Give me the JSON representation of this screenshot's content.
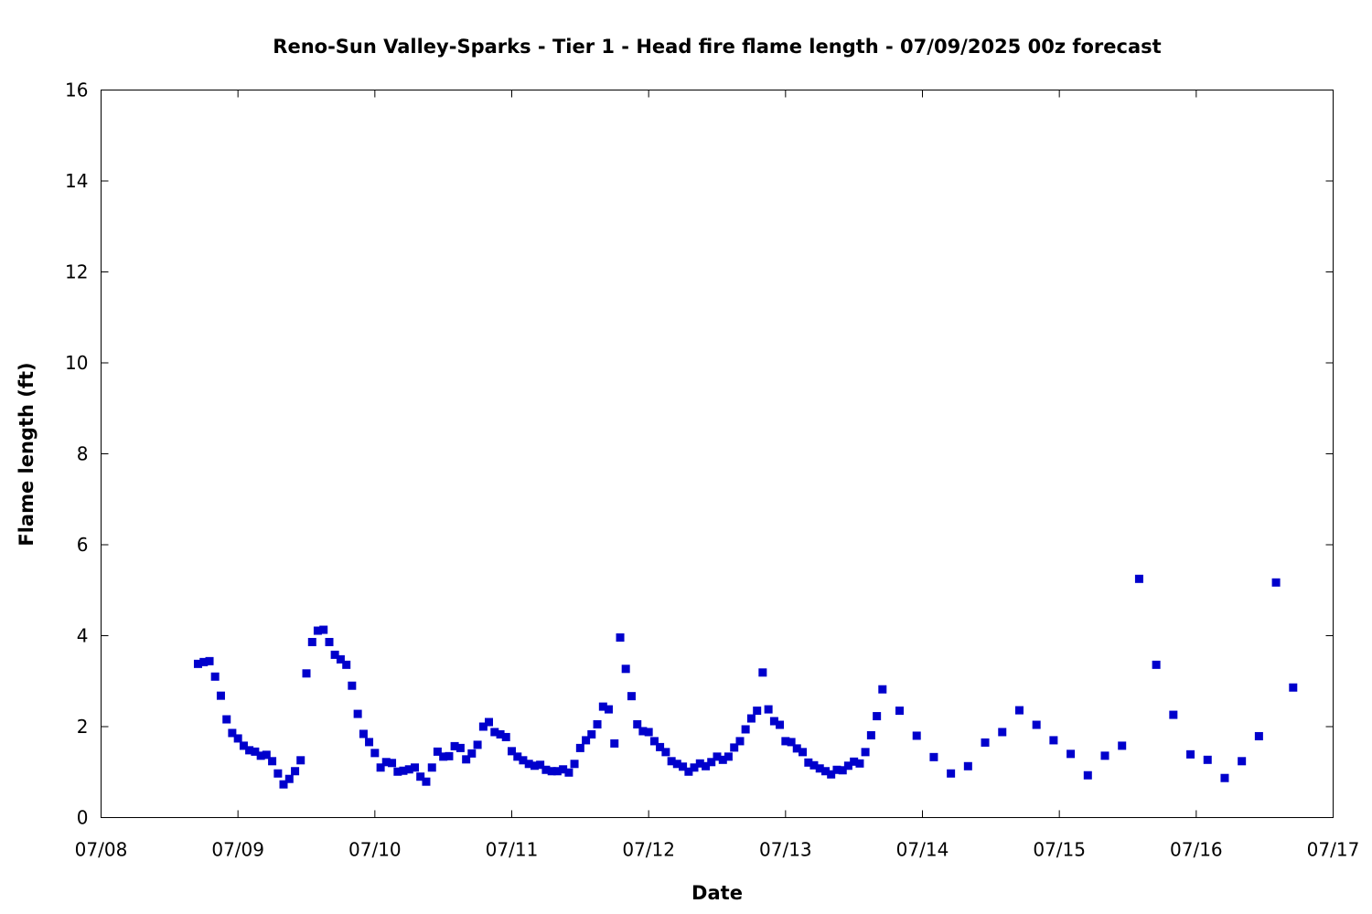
{
  "chart_data": {
    "type": "scatter",
    "title": "Reno-Sun Valley-Sparks - Tier 1 - Head fire flame length - 07/09/2025 00z forecast",
    "xlabel": "Date",
    "ylabel": "Flame length (ft)",
    "x_unit": "days",
    "x_tick_labels": [
      "07/08",
      "07/09",
      "07/10",
      "07/11",
      "07/12",
      "07/13",
      "07/14",
      "07/15",
      "07/16",
      "07/17"
    ],
    "y_ticks": [
      0,
      2,
      4,
      6,
      8,
      10,
      12,
      14,
      16
    ],
    "xlim": [
      "07/08",
      "07/17"
    ],
    "ylim": [
      0,
      16
    ],
    "grid": false,
    "legend": "none",
    "marker_color": "#0000cc",
    "series": [
      {
        "x": [
          0.708,
          0.75,
          0.792,
          0.833,
          0.875,
          0.917,
          0.958,
          1.0,
          1.042,
          1.083,
          1.125,
          1.167,
          1.208,
          1.25,
          1.292,
          1.333,
          1.375,
          1.417,
          1.458,
          1.5,
          1.542,
          1.583,
          1.625,
          1.667,
          1.708,
          1.75,
          1.792,
          1.833,
          1.875,
          1.917,
          1.958,
          2.0,
          2.042,
          2.083,
          2.125,
          2.167,
          2.208,
          2.25,
          2.292,
          2.333,
          2.375,
          2.417,
          2.458,
          2.5,
          2.542,
          2.583,
          2.625,
          2.667,
          2.708,
          2.75,
          2.792,
          2.833,
          2.875,
          2.917,
          2.958,
          3.0,
          3.042,
          3.083,
          3.125,
          3.167,
          3.208,
          3.25,
          3.292,
          3.333,
          3.375,
          3.417,
          3.458,
          3.5,
          3.542,
          3.583,
          3.625,
          3.667,
          3.708,
          3.75,
          3.792,
          3.833,
          3.875,
          3.917,
          3.958,
          4.0,
          4.042,
          4.083,
          4.125,
          4.167,
          4.208,
          4.25,
          4.292,
          4.333,
          4.375,
          4.417,
          4.458,
          4.5,
          4.542,
          4.583,
          4.625,
          4.667,
          4.708,
          4.75,
          4.792,
          4.833,
          4.875,
          4.917,
          4.958,
          5.0,
          5.042,
          5.083,
          5.125,
          5.167,
          5.208,
          5.25,
          5.292,
          5.333,
          5.375,
          5.417,
          5.458,
          5.5,
          5.542,
          5.583,
          5.625,
          5.667,
          5.708,
          5.833,
          5.958,
          6.083,
          6.208,
          6.333,
          6.458,
          6.583,
          6.708,
          6.833,
          6.958,
          7.083,
          7.208,
          7.333,
          7.458,
          7.583,
          7.708,
          7.833,
          7.958,
          8.083,
          8.208,
          8.333,
          8.458,
          8.583,
          8.708
        ],
        "y": [
          3.38,
          3.42,
          3.44,
          3.1,
          2.68,
          2.16,
          1.86,
          1.74,
          1.58,
          1.48,
          1.45,
          1.36,
          1.38,
          1.24,
          0.97,
          0.73,
          0.85,
          1.02,
          1.26,
          3.17,
          3.86,
          4.11,
          4.13,
          3.86,
          3.58,
          3.48,
          3.36,
          2.9,
          2.28,
          1.84,
          1.66,
          1.42,
          1.1,
          1.22,
          1.2,
          1.01,
          1.03,
          1.06,
          1.1,
          0.9,
          0.79,
          1.1,
          1.45,
          1.34,
          1.35,
          1.57,
          1.53,
          1.28,
          1.41,
          1.6,
          2.0,
          2.1,
          1.88,
          1.83,
          1.77,
          1.46,
          1.34,
          1.26,
          1.18,
          1.14,
          1.16,
          1.05,
          1.02,
          1.02,
          1.06,
          0.99,
          1.18,
          1.53,
          1.7,
          1.83,
          2.05,
          2.44,
          2.38,
          1.63,
          3.96,
          3.27,
          2.67,
          2.05,
          1.9,
          1.88,
          1.68,
          1.55,
          1.44,
          1.24,
          1.18,
          1.12,
          1.01,
          1.1,
          1.19,
          1.13,
          1.22,
          1.34,
          1.27,
          1.34,
          1.54,
          1.68,
          1.94,
          2.18,
          2.35,
          3.19,
          2.38,
          2.12,
          2.04,
          1.68,
          1.66,
          1.52,
          1.44,
          1.21,
          1.15,
          1.08,
          1.02,
          0.95,
          1.05,
          1.04,
          1.14,
          1.23,
          1.19,
          1.44,
          1.81,
          2.23,
          2.82,
          2.35,
          1.8,
          1.33,
          0.97,
          1.13,
          1.65,
          1.88,
          2.36,
          2.04,
          1.7,
          1.4,
          0.93,
          1.36,
          1.58,
          5.25,
          3.36,
          2.26,
          1.39,
          1.27,
          0.87,
          1.24,
          1.79,
          5.17,
          2.86
        ]
      }
    ]
  }
}
